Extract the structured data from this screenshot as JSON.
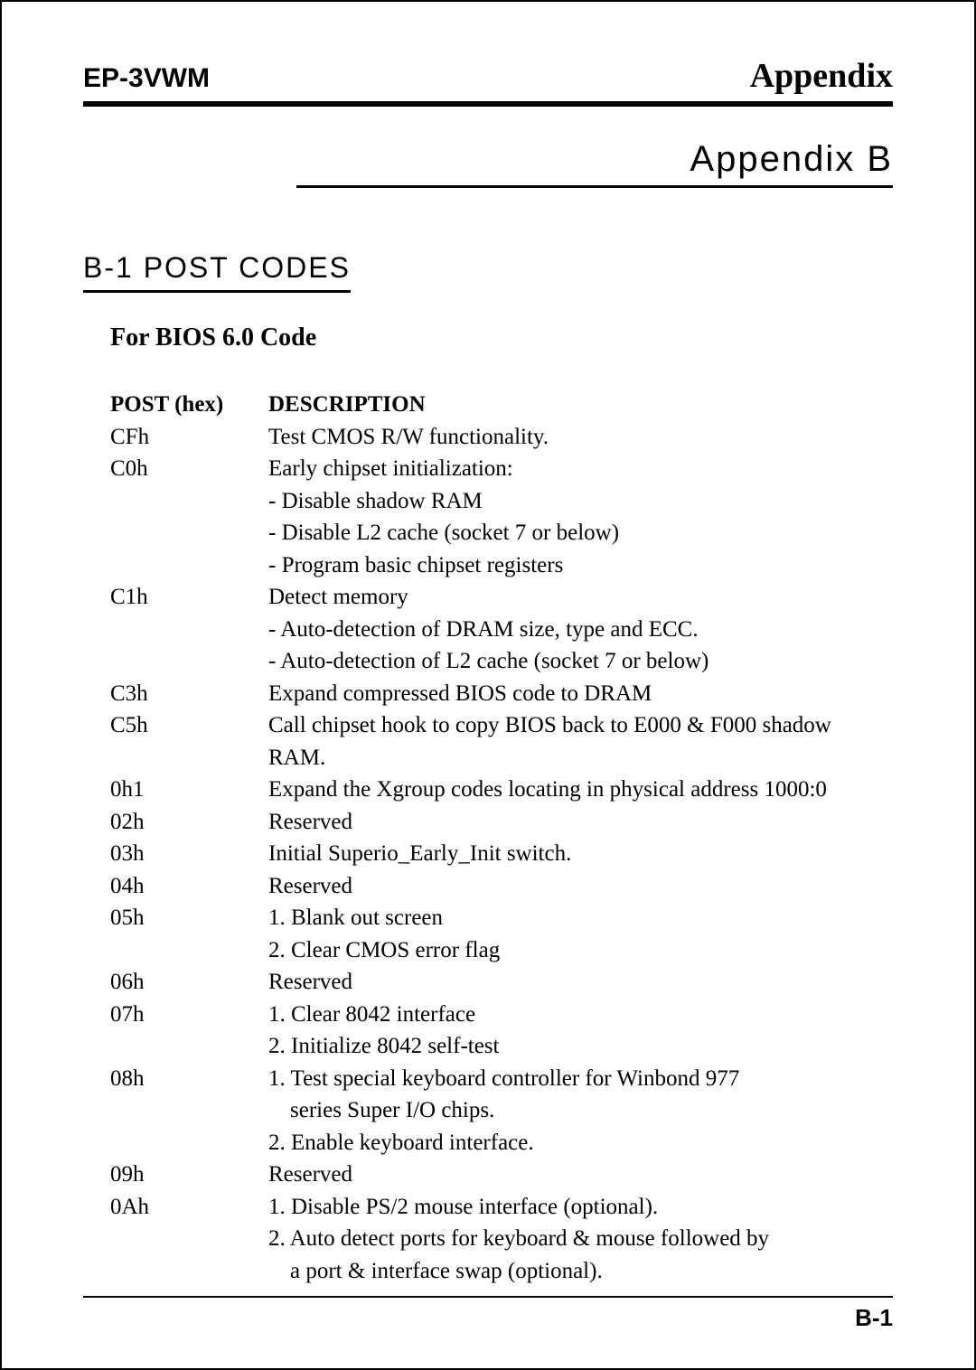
{
  "header": {
    "left": "EP-3VWM",
    "right": "Appendix"
  },
  "appendix_title": "Appendix B",
  "section_title": "B-1  POST CODES",
  "subtitle": "For BIOS 6.0 Code",
  "table": {
    "headers": {
      "code": "POST (hex)",
      "desc": "DESCRIPTION"
    },
    "rows": [
      {
        "code": "CFh",
        "lines": [
          "Test CMOS R/W functionality."
        ]
      },
      {
        "code": "C0h",
        "lines": [
          "Early chipset initialization:",
          "- Disable shadow RAM",
          "- Disable L2 cache (socket 7 or below)",
          "- Program basic chipset registers"
        ]
      },
      {
        "code": "C1h",
        "lines": [
          "Detect memory",
          "- Auto-detection of DRAM size, type and ECC.",
          "- Auto-detection of L2 cache (socket 7 or below)"
        ]
      },
      {
        "code": "C3h",
        "lines": [
          "Expand compressed BIOS code to DRAM"
        ]
      },
      {
        "code": "C5h",
        "lines": [
          "Call chipset hook to copy BIOS back to E000 & F000 shadow RAM."
        ]
      },
      {
        "code": "0h1",
        "lines": [
          "Expand the Xgroup codes locating in physical address 1000:0"
        ]
      },
      {
        "code": "02h",
        "lines": [
          "Reserved"
        ]
      },
      {
        "code": "03h",
        "lines": [
          "Initial Superio_Early_Init switch."
        ]
      },
      {
        "code": "04h",
        "lines": [
          "Reserved"
        ]
      },
      {
        "code": "05h",
        "lines": [
          "1. Blank out screen",
          "2. Clear CMOS error flag"
        ]
      },
      {
        "code": "06h",
        "lines": [
          "Reserved"
        ]
      },
      {
        "code": "07h",
        "lines": [
          "1. Clear 8042 interface",
          "2. Initialize 8042 self-test"
        ]
      },
      {
        "code": "08h",
        "lines": [
          "1. Test special keyboard controller for Winbond 977",
          {
            "indent": true,
            "text": "series Super I/O chips."
          },
          "2. Enable keyboard interface."
        ]
      },
      {
        "code": "09h",
        "lines": [
          "Reserved"
        ]
      },
      {
        "code": "0Ah",
        "lines": [
          "1. Disable PS/2 mouse interface (optional).",
          "2. Auto detect ports for keyboard & mouse followed by",
          {
            "indent": true,
            "text": "a port & interface swap (optional)."
          }
        ]
      }
    ]
  },
  "page_number": "B-1"
}
